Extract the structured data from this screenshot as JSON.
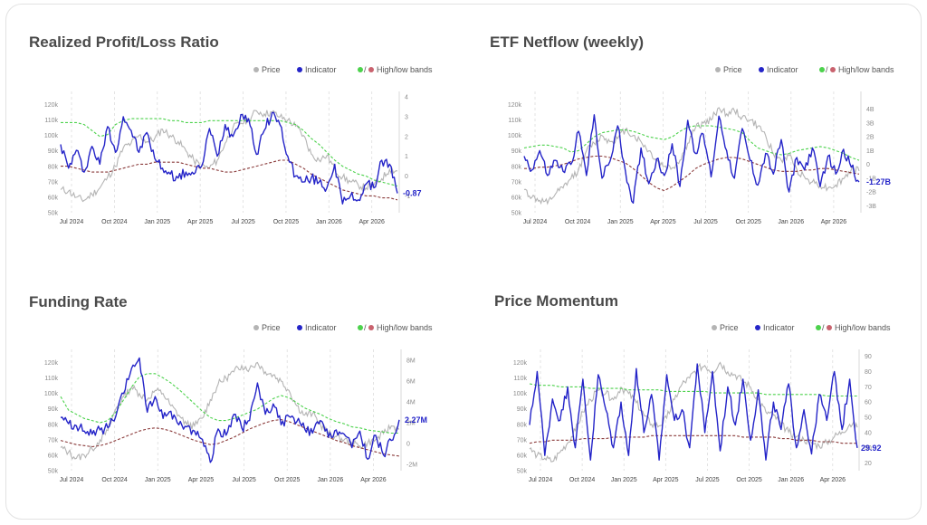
{
  "legend": {
    "price": "Price",
    "indicator": "Indicator",
    "bands_sep": "/",
    "bands": "High/low bands"
  },
  "colors": {
    "price": "#b4b4b4",
    "indicator": "#2424c8",
    "high_band": "#4cd24c",
    "low_band": "#8a3a3a",
    "legend_low": "#c9626e",
    "vgrid": "#dddddd"
  },
  "chart_data": [
    {
      "type": "line",
      "title": "Realized Profit/Loss Ratio",
      "x_ticks": [
        "Jul 2024",
        "Oct 2024",
        "Jan 2025",
        "Apr 2025",
        "Jul 2025",
        "Oct 2025",
        "Jan 2026",
        "Apr 2026"
      ],
      "y_left_ticks": [
        "50k",
        "60k",
        "70k",
        "80k",
        "90k",
        "100k",
        "110k",
        "120k"
      ],
      "y_right_ticks": [
        "-1",
        "0",
        "1",
        "2",
        "3",
        "4"
      ],
      "y_left_range": [
        50,
        125
      ],
      "y_right_range": [
        -1.85,
        4
      ],
      "last_value": -0.87,
      "last_label": "-0.87",
      "series": {
        "price": [
          65,
          64,
          60,
          58,
          62,
          66,
          73,
          80,
          92,
          95,
          100,
          96,
          98,
          104,
          100,
          96,
          90,
          84,
          80,
          79,
          84,
          95,
          105,
          108,
          110,
          116,
          114,
          115,
          112,
          110,
          106,
          100,
          88,
          84,
          87,
          78,
          73,
          70,
          68,
          66,
          68,
          72,
          78,
          77
        ],
        "indicator": [
          1.6,
          0.4,
          1.3,
          0.2,
          1.5,
          0.6,
          2.5,
          1.2,
          3.0,
          2.3,
          1.2,
          2.2,
          0.9,
          0.4,
          0.1,
          -0.1,
          0.2,
          0.1,
          0.5,
          2.4,
          1.0,
          2.6,
          2.0,
          3.1,
          2.9,
          1.1,
          2.3,
          3.2,
          2.6,
          1.0,
          0.0,
          -0.3,
          -0.1,
          -0.3,
          -0.6,
          0.6,
          -1.4,
          -1.0,
          -1.2,
          -0.4,
          -0.6,
          0.8,
          0.6,
          -0.87
        ],
        "high_band": [
          2.7,
          2.7,
          2.7,
          2.6,
          2.3,
          2.0,
          2.1,
          2.6,
          2.8,
          2.9,
          2.9,
          2.9,
          2.9,
          2.9,
          2.8,
          2.8,
          2.7,
          2.7,
          2.7,
          2.8,
          2.8,
          2.8,
          2.8,
          2.8,
          2.8,
          2.8,
          2.8,
          2.8,
          2.8,
          2.7,
          2.6,
          2.3,
          1.9,
          1.6,
          1.2,
          0.8,
          0.5,
          0.3,
          0.1,
          0.0,
          -0.2,
          -0.3,
          -0.4,
          -0.5
        ],
        "low_band": [
          0.5,
          0.5,
          0.4,
          0.3,
          0.2,
          0.2,
          0.2,
          0.3,
          0.4,
          0.5,
          0.6,
          0.6,
          0.7,
          0.7,
          0.7,
          0.7,
          0.6,
          0.5,
          0.4,
          0.4,
          0.3,
          0.2,
          0.2,
          0.3,
          0.4,
          0.5,
          0.6,
          0.7,
          0.8,
          0.8,
          0.6,
          0.4,
          0.1,
          -0.1,
          -0.3,
          -0.5,
          -0.7,
          -0.8,
          -0.9,
          -1.0,
          -1.0,
          -1.1,
          -1.1,
          -1.2
        ]
      }
    },
    {
      "type": "line",
      "title": "ETF Netflow (weekly)",
      "x_ticks": [
        "Jul 2024",
        "Oct 2024",
        "Jan 2025",
        "Apr 2025",
        "Jul 2025",
        "Oct 2025",
        "Jan 2026",
        "Apr 2026"
      ],
      "y_left_ticks": [
        "50k",
        "60k",
        "70k",
        "80k",
        "90k",
        "100k",
        "110k",
        "120k"
      ],
      "y_right_ticks": [
        "-3B",
        "-2B",
        "-1B",
        "0",
        "1B",
        "2B",
        "3B",
        "4B"
      ],
      "y_left_range": [
        50,
        125
      ],
      "y_right_range": [
        -3.5,
        4.9
      ],
      "last_value": -1.27,
      "last_label": "-1.27B",
      "series": {
        "price": [
          65,
          60,
          58,
          56,
          62,
          66,
          72,
          78,
          90,
          95,
          100,
          96,
          98,
          104,
          100,
          96,
          90,
          84,
          80,
          79,
          84,
          95,
          105,
          108,
          110,
          118,
          114,
          116,
          112,
          110,
          106,
          100,
          88,
          84,
          87,
          78,
          73,
          70,
          68,
          66,
          68,
          72,
          78,
          77
        ],
        "indicator": [
          0.6,
          -0.4,
          1.0,
          -0.8,
          0.3,
          -0.5,
          0.0,
          2.4,
          -0.8,
          3.6,
          -1.0,
          0.2,
          2.8,
          -0.5,
          -2.8,
          1.2,
          -1.4,
          0.4,
          -0.8,
          1.5,
          -1.6,
          3.2,
          0.8,
          2.2,
          -0.9,
          3.5,
          1.0,
          -1.0,
          2.6,
          0.3,
          -1.5,
          0.8,
          -0.7,
          1.8,
          -2.0,
          0.5,
          -0.4,
          1.2,
          -1.6,
          0.6,
          -0.7,
          1.1,
          -0.2,
          -1.27
        ],
        "high_band": [
          1.2,
          1.3,
          1.4,
          1.4,
          1.3,
          1.2,
          0.9,
          1.0,
          1.5,
          2.0,
          2.3,
          2.4,
          2.5,
          2.5,
          2.4,
          2.2,
          2.0,
          1.9,
          1.8,
          2.0,
          2.4,
          2.7,
          2.8,
          2.8,
          2.8,
          2.7,
          2.6,
          2.5,
          2.3,
          1.7,
          1.2,
          1.0,
          0.8,
          0.7,
          0.8,
          1.0,
          1.1,
          1.2,
          1.3,
          1.2,
          1.0,
          0.8,
          0.5,
          0.3
        ],
        "low_band": [
          -0.3,
          -0.3,
          -0.2,
          -0.2,
          -0.1,
          0.0,
          0.2,
          0.4,
          0.5,
          0.6,
          0.6,
          0.5,
          0.3,
          0.1,
          -0.3,
          -0.8,
          -1.3,
          -1.7,
          -1.9,
          -1.6,
          -1.2,
          -0.8,
          -0.3,
          0.0,
          0.2,
          0.4,
          0.5,
          0.5,
          0.4,
          0.2,
          0.0,
          -0.2,
          -0.4,
          -0.5,
          -0.5,
          -0.5,
          -0.4,
          -0.4,
          -0.3,
          -0.3,
          -0.4,
          -0.5,
          -0.6,
          -0.7
        ]
      }
    },
    {
      "type": "line",
      "title": "Funding Rate",
      "x_ticks": [
        "Jul 2024",
        "Oct 2024",
        "Jan 2025",
        "Apr 2025",
        "Jul 2025",
        "Oct 2025",
        "Jan 2026",
        "Apr 2026"
      ],
      "y_left_ticks": [
        "50k",
        "60k",
        "70k",
        "80k",
        "90k",
        "100k",
        "110k",
        "120k"
      ],
      "y_right_ticks": [
        "-2M",
        "0",
        "2M",
        "4M",
        "6M",
        "8M"
      ],
      "y_left_range": [
        50,
        125
      ],
      "y_right_range": [
        -2.6,
        8.5
      ],
      "last_value": 2.27,
      "last_label": "2.27M",
      "series": {
        "price": [
          65,
          62,
          58,
          60,
          64,
          70,
          76,
          90,
          98,
          104,
          100,
          96,
          102,
          100,
          92,
          86,
          80,
          79,
          84,
          96,
          106,
          110,
          114,
          118,
          116,
          120,
          114,
          112,
          108,
          102,
          92,
          86,
          87,
          80,
          74,
          72,
          70,
          68,
          66,
          68,
          70,
          74,
          79,
          77
        ],
        "indicator": [
          2.5,
          1.9,
          1.7,
          1.2,
          0.9,
          1.3,
          1.5,
          2.6,
          4.8,
          7.2,
          8.2,
          3.0,
          4.5,
          2.4,
          3.1,
          1.8,
          1.6,
          1.2,
          0.4,
          -1.8,
          1.4,
          0.8,
          2.8,
          1.5,
          2.2,
          5.8,
          2.8,
          3.8,
          1.8,
          2.6,
          2.1,
          1.4,
          1.0,
          2.2,
          0.6,
          1.3,
          0.9,
          -0.4,
          1.2,
          -1.5,
          0.8,
          -1.1,
          0.3,
          2.27
        ],
        "high_band": [
          4.5,
          3.2,
          2.8,
          2.4,
          2.2,
          2.0,
          2.2,
          3.0,
          4.2,
          5.4,
          6.4,
          6.7,
          6.7,
          6.3,
          5.8,
          5.2,
          4.5,
          3.8,
          3.1,
          2.5,
          2.2,
          2.2,
          2.4,
          2.7,
          3.0,
          3.3,
          3.8,
          4.3,
          4.6,
          4.4,
          3.9,
          3.4,
          3.1,
          2.8,
          2.4,
          2.1,
          1.9,
          1.6,
          1.5,
          1.3,
          1.2,
          1.1,
          1.0,
          1.0
        ],
        "low_band": [
          0.3,
          0.1,
          -0.1,
          -0.2,
          -0.3,
          -0.2,
          0.0,
          0.3,
          0.6,
          0.9,
          1.2,
          1.4,
          1.5,
          1.4,
          1.2,
          0.9,
          0.6,
          0.3,
          0.1,
          -0.1,
          0.0,
          0.3,
          0.6,
          1.0,
          1.4,
          1.7,
          2.0,
          2.2,
          2.3,
          2.1,
          1.8,
          1.5,
          1.2,
          0.9,
          0.6,
          0.3,
          0.1,
          -0.2,
          -0.4,
          -0.6,
          -0.8,
          -1.0,
          -1.1,
          -1.2
        ]
      }
    },
    {
      "type": "line",
      "title": "Price Momentum",
      "x_ticks": [
        "Jul 2024",
        "Oct 2024",
        "Jan 2025",
        "Apr 2025",
        "Jul 2025",
        "Oct 2025",
        "Jan 2026",
        "Apr 2026"
      ],
      "y_left_ticks": [
        "50k",
        "60k",
        "70k",
        "80k",
        "90k",
        "100k",
        "110k",
        "120k"
      ],
      "y_right_ticks": [
        "20",
        "30",
        "40",
        "50",
        "60",
        "70",
        "80",
        "90"
      ],
      "y_left_range": [
        50,
        125
      ],
      "y_right_range": [
        15,
        91
      ],
      "last_value": 29.92,
      "last_label": "29.92",
      "series": {
        "price": [
          64,
          60,
          58,
          56,
          62,
          68,
          76,
          88,
          96,
          102,
          100,
          96,
          104,
          100,
          94,
          86,
          80,
          79,
          84,
          96,
          106,
          110,
          116,
          118,
          114,
          120,
          114,
          112,
          108,
          104,
          96,
          88,
          86,
          80,
          75,
          72,
          70,
          68,
          66,
          68,
          72,
          75,
          80,
          78
        ],
        "indicator": [
          45,
          80,
          25,
          62,
          48,
          70,
          30,
          75,
          22,
          78,
          55,
          30,
          60,
          25,
          82,
          40,
          65,
          22,
          78,
          48,
          55,
          30,
          85,
          40,
          80,
          28,
          70,
          45,
          75,
          35,
          68,
          22,
          60,
          42,
          72,
          30,
          55,
          26,
          65,
          48,
          80,
          42,
          75,
          29.92
        ],
        "high_band": [
          72,
          71,
          71,
          71,
          70,
          70,
          70,
          70,
          69,
          69,
          69,
          69,
          69,
          68,
          68,
          68,
          68,
          68,
          67,
          67,
          67,
          67,
          67,
          67,
          66,
          66,
          66,
          66,
          66,
          66,
          66,
          65,
          65,
          65,
          65,
          65,
          65,
          65,
          65,
          64,
          64,
          64,
          64,
          64
        ],
        "low_band": [
          33,
          34,
          34,
          35,
          35,
          35,
          35,
          36,
          36,
          36,
          36,
          37,
          37,
          37,
          37,
          37,
          38,
          38,
          38,
          38,
          38,
          38,
          38,
          38,
          38,
          38,
          38,
          38,
          37,
          37,
          37,
          37,
          37,
          36,
          36,
          35,
          35,
          35,
          34,
          34,
          34,
          33,
          33,
          33
        ]
      }
    }
  ]
}
